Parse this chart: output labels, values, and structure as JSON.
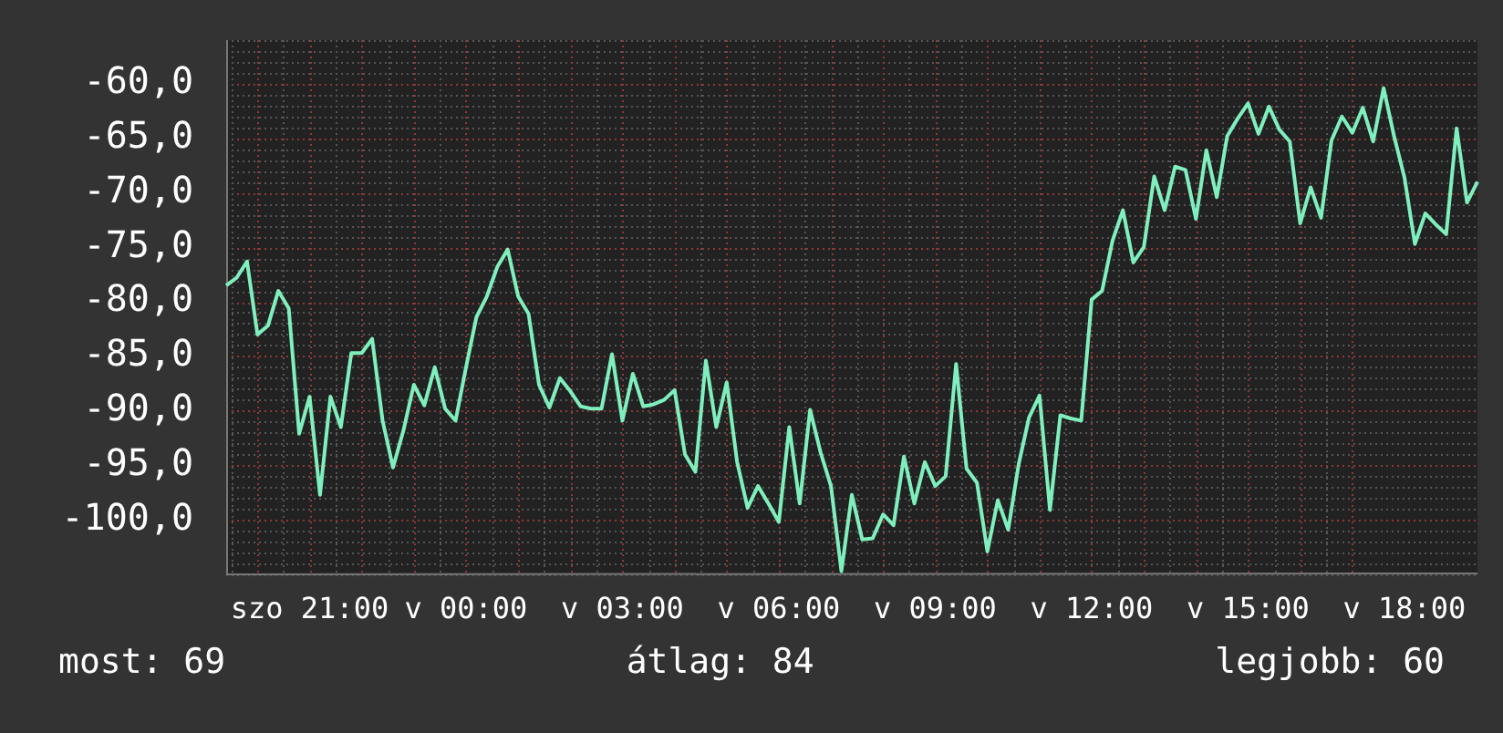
{
  "chart_data": {
    "type": "line",
    "categories": [
      null,
      null,
      null,
      null,
      null,
      null,
      null,
      null,
      "szo 21:00",
      null,
      null,
      null,
      null,
      null,
      null,
      null,
      null,
      null,
      null,
      null,
      null,
      null,
      null,
      "v 00:00",
      null,
      null,
      null,
      null,
      null,
      null,
      null,
      null,
      null,
      null,
      null,
      null,
      null,
      null,
      "v 03:00",
      null,
      null,
      null,
      null,
      null,
      null,
      null,
      null,
      null,
      null,
      null,
      null,
      null,
      null,
      "v 06:00",
      null,
      null,
      null,
      null,
      null,
      null,
      null,
      null,
      null,
      null,
      null,
      null,
      null,
      null,
      "v 09:00",
      null,
      null,
      null,
      null,
      null,
      null,
      null,
      null,
      null,
      null,
      null,
      null,
      null,
      null,
      "v 12:00",
      null,
      null,
      null,
      null,
      null,
      null,
      null,
      null,
      null,
      null,
      null,
      null,
      null,
      null,
      "v 15:00",
      null,
      null,
      null,
      null,
      null,
      null,
      null,
      null,
      null,
      null,
      null,
      null,
      null,
      null,
      "v 18:00",
      null,
      null,
      null,
      null,
      null,
      null,
      null
    ],
    "series": [
      {
        "color": "#7fefbd",
        "values": [
          -78.5,
          -77.8,
          -76.3,
          -83.0,
          -82.2,
          -79.0,
          -80.6,
          -92.1,
          -88.7,
          -97.7,
          -88.7,
          -91.5,
          -84.7,
          -84.7,
          -83.4,
          -90.9,
          -95.2,
          -91.8,
          -87.6,
          -89.5,
          -86.0,
          -89.8,
          -90.9,
          -86.0,
          -81.4,
          -79.5,
          -76.8,
          -75.2,
          -79.5,
          -81.1,
          -87.6,
          -89.7,
          -87.0,
          -88.2,
          -89.6,
          -89.8,
          -89.8,
          -84.8,
          -90.9,
          -86.6,
          -89.6,
          -89.4,
          -89.0,
          -88.1,
          -94.0,
          -95.6,
          -85.4,
          -91.5,
          -87.4,
          -94.7,
          -98.9,
          -96.9,
          -98.5,
          -100.2,
          -91.5,
          -98.5,
          -89.9,
          -93.8,
          -96.9,
          -104.7,
          -97.7,
          -101.8,
          -101.7,
          -99.5,
          -100.5,
          -94.2,
          -98.5,
          -94.7,
          -96.9,
          -96.0,
          -85.7,
          -95.3,
          -96.6,
          -102.9,
          -98.2,
          -100.9,
          -94.9,
          -90.6,
          -88.6,
          -99.1,
          -90.4,
          -90.7,
          -90.9,
          -79.8,
          -79.0,
          -74.4,
          -71.6,
          -76.4,
          -75.0,
          -68.5,
          -71.6,
          -67.6,
          -67.9,
          -72.4,
          -66.1,
          -70.4,
          -64.8,
          -63.2,
          -61.8,
          -64.6,
          -62.1,
          -64.2,
          -65.3,
          -72.8,
          -69.5,
          -72.3,
          -65.2,
          -63.0,
          -64.5,
          -62.2,
          -65.3,
          -60.4,
          -64.8,
          -68.6,
          -74.7,
          -71.9,
          -72.9,
          -73.8,
          -64.1,
          -70.9,
          -69.0
        ]
      }
    ],
    "ylim": [
      -105,
      -56
    ],
    "yticks": [
      {
        "value": -100,
        "label": "-100,0"
      },
      {
        "value": -95,
        "label": "-95,0"
      },
      {
        "value": -90,
        "label": "-90,0"
      },
      {
        "value": -85,
        "label": "-85,0"
      },
      {
        "value": -80,
        "label": "-80,0"
      },
      {
        "value": -75,
        "label": "-75,0"
      },
      {
        "value": -70,
        "label": "-70,0"
      },
      {
        "value": -65,
        "label": "-65,0"
      },
      {
        "value": -60,
        "label": "-60,0"
      }
    ],
    "grid": true,
    "legend": false,
    "marker": "none",
    "line_style": "solid",
    "annotations": [
      "most: 69",
      "átlag: 84",
      "legjobb: 60"
    ]
  }
}
